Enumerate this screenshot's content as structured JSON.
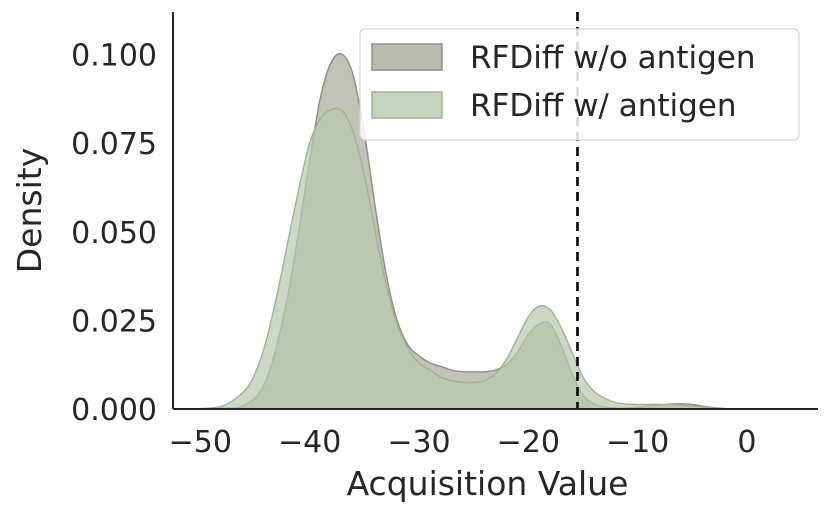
{
  "chart_data": {
    "type": "area",
    "xlabel": "Acquisition Value",
    "ylabel": "Density",
    "xlim": [
      -52.5,
      6.5
    ],
    "ylim": [
      0,
      0.112
    ],
    "xticks": [
      -50,
      -40,
      -30,
      -20,
      -10,
      0
    ],
    "xtick_labels": [
      "−50",
      "−40",
      "−30",
      "−20",
      "−10",
      "0"
    ],
    "yticks": [
      0,
      0.025,
      0.05,
      0.075,
      0.1
    ],
    "ytick_labels": [
      "0.000",
      "0.025",
      "0.050",
      "0.075",
      "0.100"
    ],
    "threshold_x": -15.5,
    "grid": false,
    "legend_position": "top-right",
    "series": [
      {
        "name": "RFDiff w/o antigen",
        "fill": "#a9aa9c",
        "stroke": "#8e8f80",
        "x": [
          -51,
          -48,
          -46,
          -44,
          -42,
          -40,
          -39,
          -38,
          -37,
          -36,
          -35,
          -34,
          -33,
          -32,
          -31,
          -30,
          -29,
          -28,
          -27,
          -26,
          -25,
          -24,
          -23,
          -22,
          -21,
          -20,
          -19,
          -18,
          -17,
          -16,
          -15,
          -14,
          -13,
          -12,
          -11,
          -10,
          -9,
          -8,
          -7,
          -6,
          -5,
          -4,
          -3,
          -2,
          -1,
          0
        ],
        "y": [
          0,
          0.0002,
          0.001,
          0.008,
          0.032,
          0.07,
          0.088,
          0.098,
          0.1,
          0.094,
          0.078,
          0.057,
          0.038,
          0.025,
          0.018,
          0.015,
          0.013,
          0.012,
          0.011,
          0.0105,
          0.0105,
          0.0105,
          0.011,
          0.0125,
          0.016,
          0.021,
          0.024,
          0.024,
          0.018,
          0.01,
          0.004,
          0.0015,
          0.0006,
          0.0003,
          0.0003,
          0.0005,
          0.0008,
          0.0011,
          0.0014,
          0.0015,
          0.0013,
          0.0008,
          0.0004,
          0.0001,
          0,
          0
        ]
      },
      {
        "name": "RFDiff w/ antigen",
        "fill": "#b8c9ac",
        "stroke": "#9fb392",
        "x": [
          -51,
          -48,
          -46,
          -45,
          -44,
          -43,
          -42,
          -41,
          -40,
          -39,
          -38,
          -37,
          -36,
          -35,
          -34,
          -33,
          -32,
          -31,
          -30,
          -29,
          -28,
          -27,
          -26,
          -25,
          -24,
          -23,
          -22,
          -21,
          -20,
          -19,
          -18,
          -17,
          -16,
          -15,
          -14,
          -13,
          -12,
          -11,
          -10,
          -9,
          -8,
          -7,
          -6,
          -5,
          -4,
          -3,
          -2,
          -1,
          0
        ],
        "y": [
          0,
          0.0008,
          0.005,
          0.01,
          0.019,
          0.032,
          0.047,
          0.062,
          0.075,
          0.082,
          0.0845,
          0.084,
          0.078,
          0.066,
          0.05,
          0.035,
          0.024,
          0.017,
          0.013,
          0.011,
          0.009,
          0.008,
          0.0075,
          0.0075,
          0.008,
          0.01,
          0.014,
          0.02,
          0.026,
          0.029,
          0.028,
          0.023,
          0.016,
          0.009,
          0.005,
          0.003,
          0.0018,
          0.0014,
          0.0013,
          0.0013,
          0.0013,
          0.0012,
          0.001,
          0.0008,
          0.0006,
          0.0003,
          0.0001,
          0,
          0
        ]
      }
    ]
  }
}
